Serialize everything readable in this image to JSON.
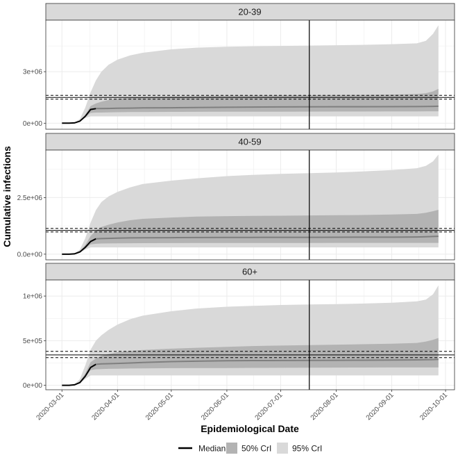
{
  "chart_data": {
    "type": "area",
    "facet_by": "age group",
    "xlabel": "Epidemiological Date",
    "ylabel": "Cumulative infections",
    "x_domain": [
      "2020-02-21",
      "2020-10-06"
    ],
    "x_ticks": [
      {
        "date": "2020-03-01",
        "label": "2020-03-01"
      },
      {
        "date": "2020-04-01",
        "label": "2020-04-01"
      },
      {
        "date": "2020-05-01",
        "label": "2020-05-01"
      },
      {
        "date": "2020-06-01",
        "label": "2020-06-01"
      },
      {
        "date": "2020-07-01",
        "label": "2020-07-01"
      },
      {
        "date": "2020-08-01",
        "label": "2020-08-01"
      },
      {
        "date": "2020-09-01",
        "label": "2020-09-01"
      },
      {
        "date": "2020-10-01",
        "label": "2020-10-01"
      }
    ],
    "vline_date": "2020-07-17",
    "x": [
      "2020-03-01",
      "2020-03-05",
      "2020-03-08",
      "2020-03-11",
      "2020-03-14",
      "2020-03-17",
      "2020-03-20",
      "2020-03-23",
      "2020-03-27",
      "2020-04-01",
      "2020-04-08",
      "2020-04-15",
      "2020-05-01",
      "2020-05-15",
      "2020-06-01",
      "2020-06-15",
      "2020-07-01",
      "2020-07-17",
      "2020-08-01",
      "2020-08-15",
      "2020-09-01",
      "2020-09-15",
      "2020-09-20",
      "2020-09-24",
      "2020-09-27"
    ],
    "legend": [
      {
        "key": "median",
        "label": "Median"
      },
      {
        "key": "ci50",
        "label": "50% CrI"
      },
      {
        "key": "ci95",
        "label": "95% CrI"
      }
    ],
    "colors": {
      "median": "#000000",
      "series_median": "#7f7f7f",
      "ci50": "#b3b3b3",
      "ci95": "#d9d9d9",
      "strip": "#d9d9d9",
      "grid": "#ebebeb"
    },
    "facets": [
      {
        "title": "20-39",
        "ylim": [
          -350000,
          6000000
        ],
        "y_ticks": [
          {
            "value": 0,
            "label": "0e+00"
          },
          {
            "value": 3000000,
            "label": "3e+06"
          }
        ],
        "hlines": {
          "solid": 1500000,
          "dashed": [
            1400000,
            1620000
          ]
        },
        "median": [
          0,
          0,
          20000,
          120000,
          400000,
          800000,
          850000,
          850000,
          860000,
          870000,
          880000,
          890000,
          900000,
          910000,
          930000,
          940000,
          950000,
          955000,
          960000,
          960000,
          965000,
          970000,
          975000,
          980000,
          990000
        ],
        "ci50_lo": [
          0,
          0,
          20000,
          100000,
          350000,
          600000,
          620000,
          620000,
          630000,
          640000,
          650000,
          655000,
          660000,
          665000,
          670000,
          672000,
          675000,
          678000,
          680000,
          682000,
          684000,
          686000,
          688000,
          690000,
          692000
        ],
        "ci50_hi": [
          0,
          0,
          25000,
          150000,
          480000,
          1000000,
          1150000,
          1250000,
          1350000,
          1420000,
          1480000,
          1520000,
          1560000,
          1580000,
          1600000,
          1610000,
          1620000,
          1630000,
          1640000,
          1650000,
          1670000,
          1700000,
          1750000,
          1850000,
          2000000
        ],
        "ci95_lo": [
          0,
          0,
          15000,
          80000,
          300000,
          400000,
          400000,
          400000,
          400000,
          400000,
          400000,
          400000,
          400000,
          400000,
          400000,
          400000,
          400000,
          400000,
          400000,
          400000,
          400000,
          400000,
          400000,
          400000,
          400000
        ],
        "ci95_hi": [
          0,
          0,
          35000,
          250000,
          900000,
          1800000,
          2500000,
          3000000,
          3400000,
          3700000,
          3950000,
          4100000,
          4300000,
          4400000,
          4450000,
          4480000,
          4500000,
          4520000,
          4540000,
          4560000,
          4600000,
          4650000,
          4800000,
          5200000,
          5700000
        ]
      },
      {
        "title": "40-59",
        "ylim": [
          -250000,
          4600000
        ],
        "y_ticks": [
          {
            "value": 0,
            "label": "0.0e+00"
          },
          {
            "value": 2500000,
            "label": "2.5e+06"
          }
        ],
        "hlines": {
          "solid": 1050000,
          "dashed": [
            980000,
            1140000
          ]
        },
        "median": [
          0,
          0,
          15000,
          100000,
          300000,
          560000,
          680000,
          690000,
          700000,
          710000,
          720000,
          725000,
          730000,
          735000,
          740000,
          742000,
          744000,
          746000,
          748000,
          750000,
          752000,
          760000,
          770000,
          780000,
          790000
        ],
        "ci50_lo": [
          0,
          0,
          12000,
          80000,
          250000,
          430000,
          460000,
          470000,
          475000,
          480000,
          485000,
          488000,
          490000,
          492000,
          494000,
          495000,
          496000,
          497000,
          498000,
          499000,
          500000,
          500000,
          500000,
          500000,
          500000
        ],
        "ci50_hi": [
          0,
          0,
          20000,
          130000,
          400000,
          800000,
          1050000,
          1200000,
          1300000,
          1400000,
          1500000,
          1560000,
          1620000,
          1660000,
          1680000,
          1690000,
          1700000,
          1710000,
          1720000,
          1730000,
          1750000,
          1780000,
          1830000,
          1900000,
          1960000
        ],
        "ci95_lo": [
          0,
          0,
          10000,
          60000,
          200000,
          300000,
          300000,
          300000,
          300000,
          300000,
          300000,
          300000,
          300000,
          300000,
          300000,
          300000,
          300000,
          300000,
          300000,
          300000,
          300000,
          300000,
          300000,
          300000,
          300000
        ],
        "ci95_hi": [
          0,
          0,
          30000,
          200000,
          700000,
          1400000,
          1950000,
          2300000,
          2550000,
          2750000,
          2950000,
          3100000,
          3250000,
          3350000,
          3450000,
          3500000,
          3550000,
          3580000,
          3610000,
          3650000,
          3720000,
          3800000,
          3900000,
          4100000,
          4400000
        ]
      },
      {
        "title": "60+",
        "ylim": [
          -50000,
          1180000
        ],
        "y_ticks": [
          {
            "value": 0,
            "label": "0e+00"
          },
          {
            "value": 500000,
            "label": "5e+05"
          },
          {
            "value": 1000000,
            "label": "1e+06"
          }
        ],
        "hlines": {
          "solid": 340000,
          "dashed": [
            310000,
            380000
          ]
        },
        "median": [
          0,
          0,
          5000,
          30000,
          100000,
          200000,
          235000,
          240000,
          242000,
          245000,
          250000,
          255000,
          265000,
          270000,
          275000,
          277000,
          278000,
          279000,
          280000,
          281000,
          283000,
          285000,
          287000,
          288000,
          290000
        ],
        "ci50_lo": [
          0,
          0,
          4000,
          25000,
          90000,
          170000,
          180000,
          182000,
          184000,
          186000,
          188000,
          190000,
          192000,
          193000,
          194000,
          195000,
          196000,
          197000,
          198000,
          199000,
          200000,
          200000,
          200000,
          200000,
          200000
        ],
        "ci50_hi": [
          0,
          0,
          6000,
          40000,
          130000,
          260000,
          300000,
          330000,
          350000,
          370000,
          385000,
          395000,
          410000,
          420000,
          430000,
          440000,
          445000,
          450000,
          455000,
          460000,
          465000,
          475000,
          490000,
          510000,
          530000
        ],
        "ci95_lo": [
          0,
          0,
          3000,
          20000,
          70000,
          110000,
          110000,
          110000,
          110000,
          110000,
          110000,
          110000,
          110000,
          110000,
          110000,
          110000,
          110000,
          110000,
          110000,
          110000,
          110000,
          110000,
          110000,
          110000,
          110000
        ],
        "ci95_hi": [
          0,
          0,
          10000,
          70000,
          220000,
          400000,
          500000,
          560000,
          620000,
          680000,
          740000,
          780000,
          830000,
          860000,
          880000,
          890000,
          900000,
          905000,
          910000,
          915000,
          925000,
          940000,
          960000,
          1020000,
          1120000
        ]
      }
    ]
  }
}
